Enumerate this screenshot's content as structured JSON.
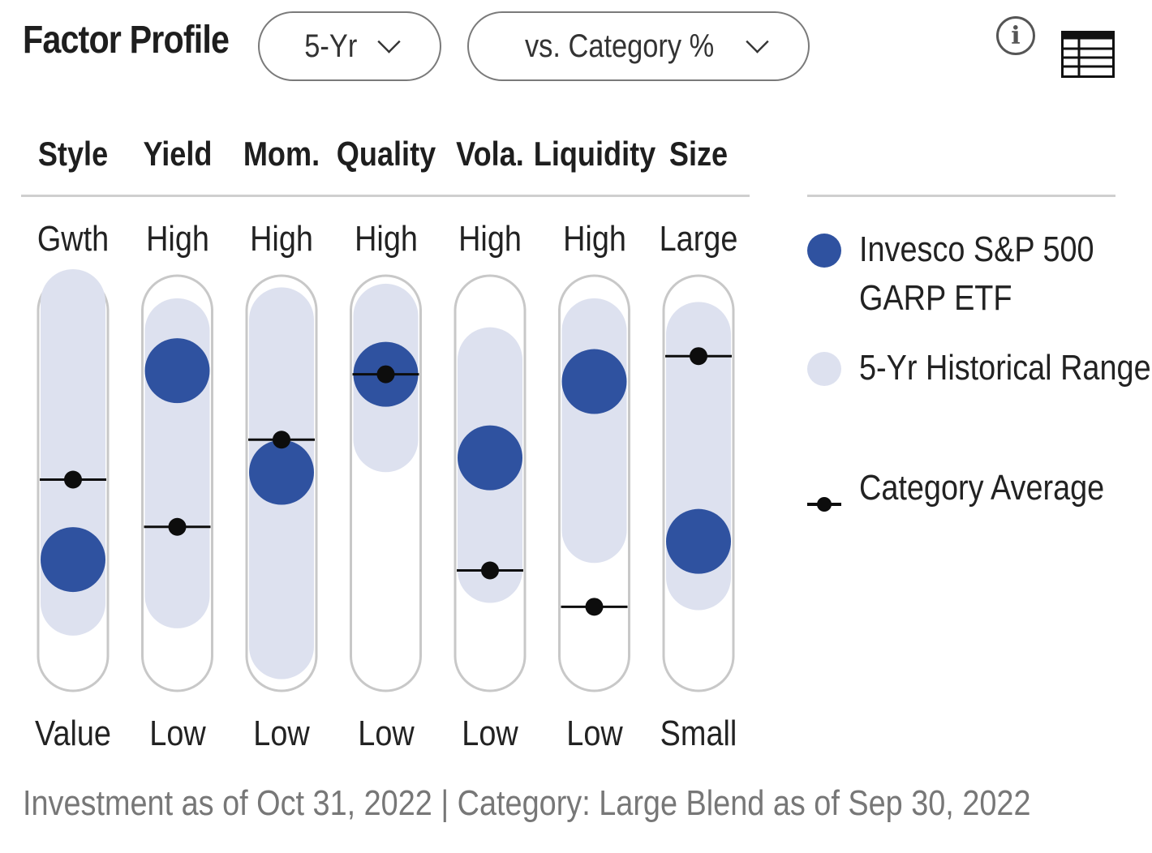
{
  "header": {
    "title": "Factor Profile",
    "period_select": "5-Yr",
    "compare_select": "vs. Category %",
    "info_icon": "info-icon",
    "table_icon": "table-view-icon"
  },
  "colors": {
    "investment": "#2f52a0",
    "range": "#dde1ef",
    "track_border": "#c8c8c8",
    "category_marker": "#0d0d0d"
  },
  "chart_data": {
    "type": "factor-profile",
    "scale": "percentile",
    "ylim": [
      0,
      100
    ],
    "series": [
      {
        "name": "Invesco S&P 500 GARP ETF",
        "kind": "point"
      },
      {
        "name": "5-Yr Historical Range",
        "kind": "range"
      },
      {
        "name": "Category Average",
        "kind": "marker"
      }
    ],
    "factors": [
      {
        "name": "Style",
        "top_label": "Gwth",
        "bottom_label": "Value",
        "range": [
          17,
          100
        ],
        "investment": 29,
        "category": 51
      },
      {
        "name": "Yield",
        "top_label": "High",
        "bottom_label": "Low",
        "range": [
          19,
          92
        ],
        "investment": 81,
        "category": 38
      },
      {
        "name": "Mom.",
        "top_label": "High",
        "bottom_label": "Low",
        "range": [
          5,
          95
        ],
        "investment": 53,
        "category": 62
      },
      {
        "name": "Quality",
        "top_label": "High",
        "bottom_label": "Low",
        "range": [
          62,
          96
        ],
        "investment": 80,
        "category": 80
      },
      {
        "name": "Vola.",
        "top_label": "High",
        "bottom_label": "Low",
        "range": [
          26,
          84
        ],
        "investment": 57,
        "category": 26
      },
      {
        "name": "Liquidity",
        "top_label": "High",
        "bottom_label": "Low",
        "range": [
          37,
          92
        ],
        "investment": 78,
        "category": 16
      },
      {
        "name": "Size",
        "top_label": "Large",
        "bottom_label": "Small",
        "range": [
          24,
          91
        ],
        "investment": 34,
        "category": 85
      }
    ]
  },
  "legend": [
    {
      "label": "Invesco S&P 500 GARP ETF",
      "icon": "investment-dot"
    },
    {
      "label": "5-Yr Historical Range",
      "icon": "range-dot"
    },
    {
      "label": "Category Average",
      "icon": "category-marker"
    }
  ],
  "footer": "Investment as of Oct 31, 2022 | Category: Large Blend as of Sep 30, 2022"
}
